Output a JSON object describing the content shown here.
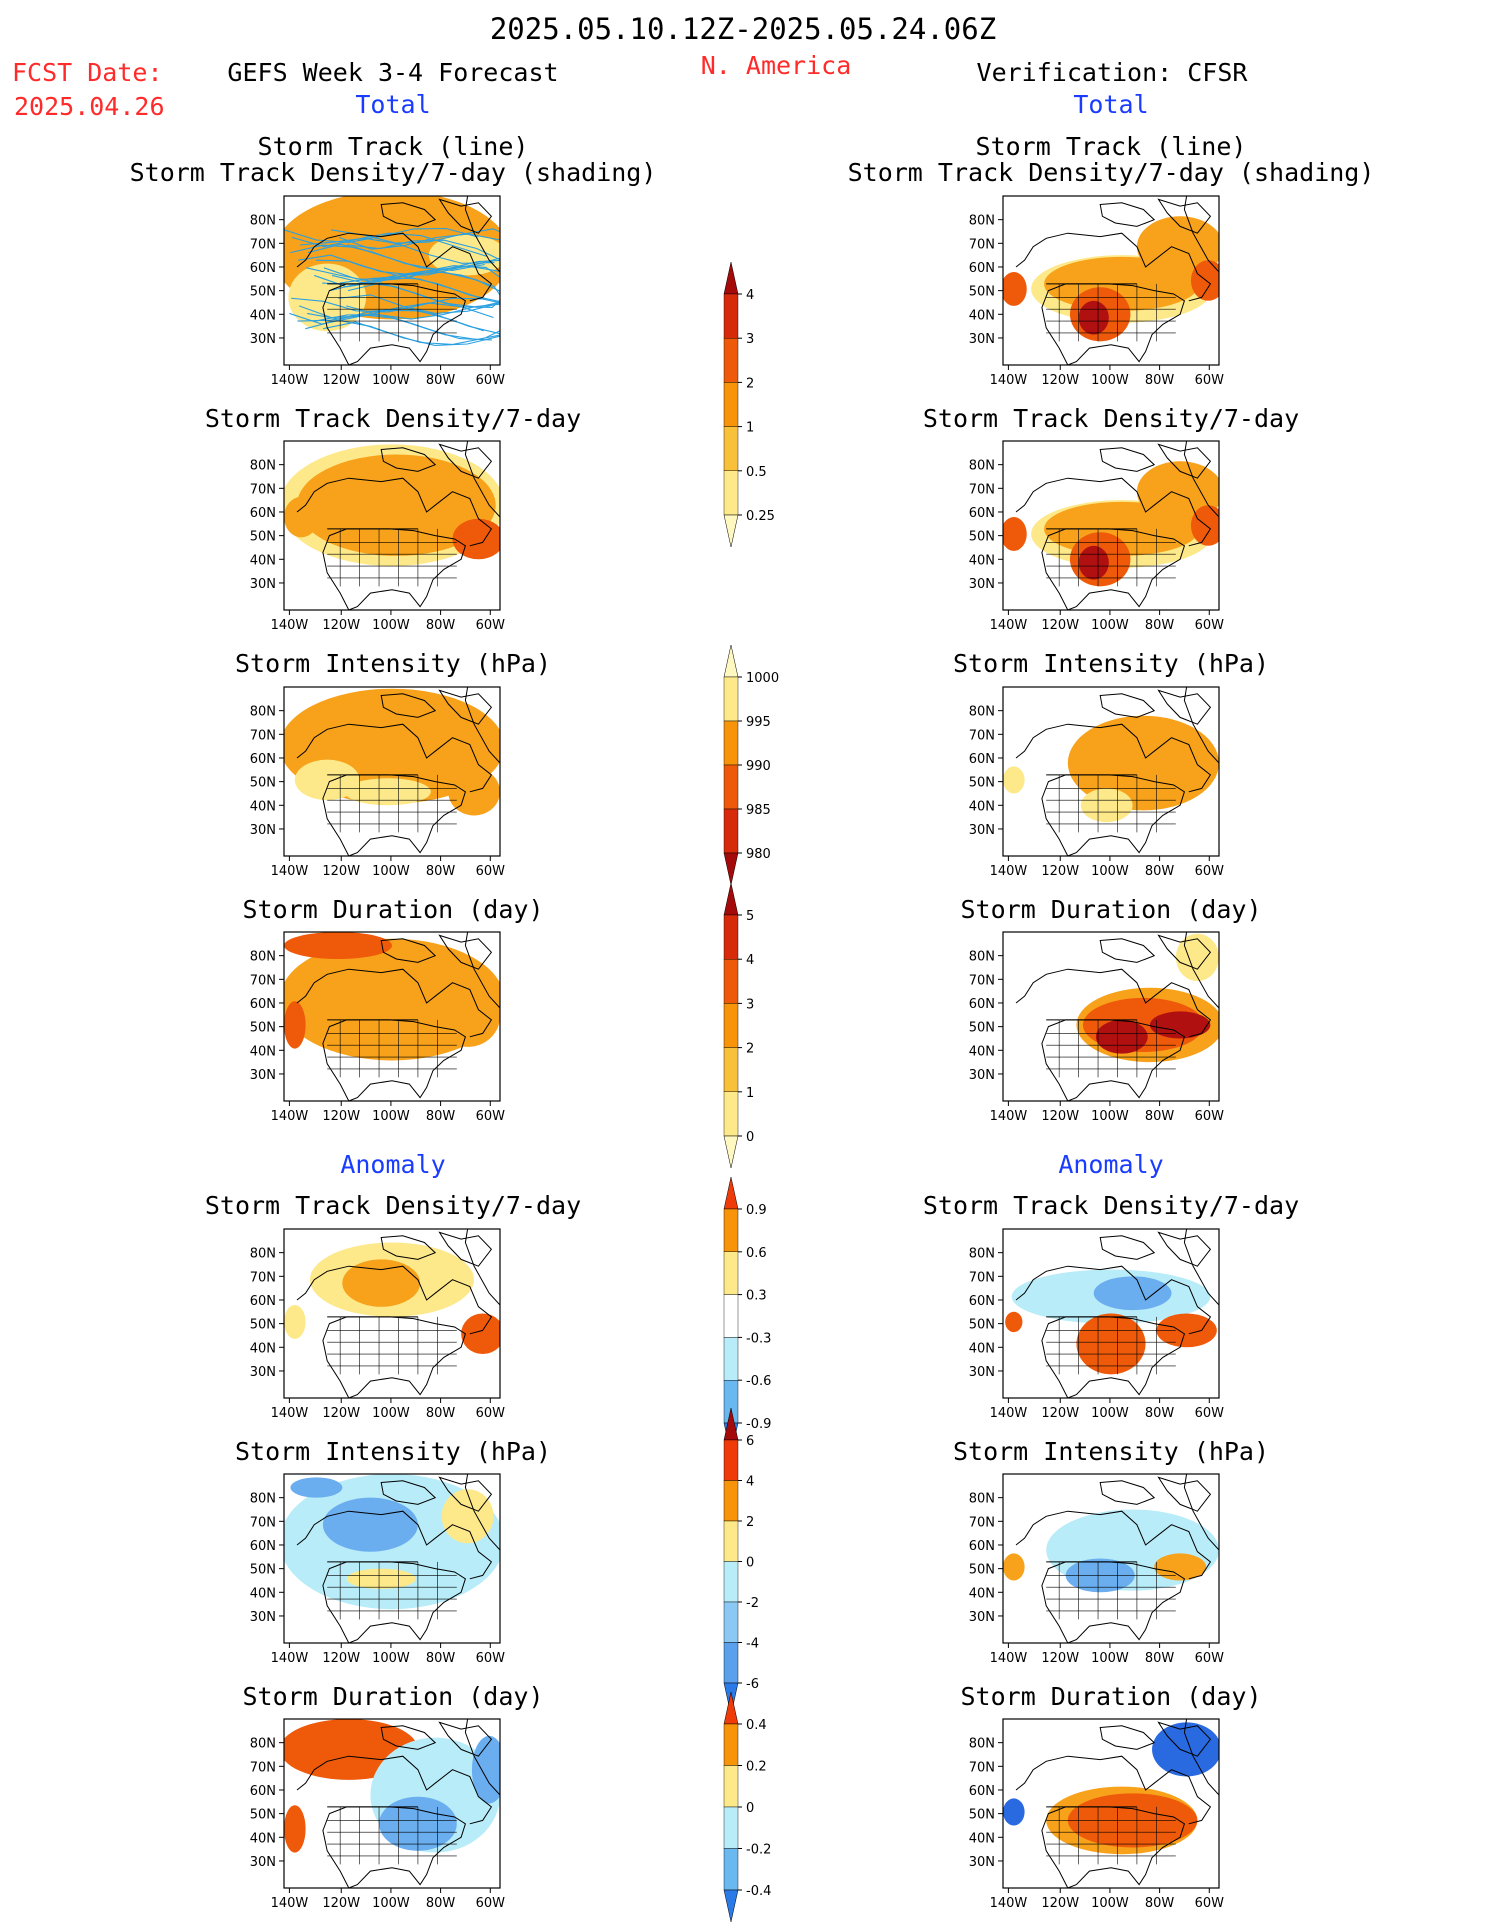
{
  "header": {
    "period": "2025.05.10.12Z-2025.05.24.06Z",
    "fcst_label": "FCST Date:",
    "fcst_date": "2025.04.26",
    "forecast_title": "GEFS Week 3-4 Forecast",
    "region": "N. America",
    "verification_title": "Verification: CFSR"
  },
  "sections": {
    "total": "Total",
    "anomaly": "Anomaly"
  },
  "titles": {
    "track_line": "Storm Track (line)",
    "track_density_shading": "Storm Track Density/7-day (shading)",
    "track_density": "Storm Track Density/7-day",
    "intensity": "Storm Intensity (hPa)",
    "duration": "Storm Duration (day)"
  },
  "axes": {
    "lat_labels": [
      "80N",
      "70N",
      "60N",
      "50N",
      "40N",
      "30N"
    ],
    "lon_labels": [
      "140W",
      "120W",
      "100W",
      "80W",
      "60W"
    ]
  },
  "colorbars": {
    "density_total": {
      "labels": [
        "4",
        "3",
        "2",
        "1",
        "0.5",
        "0.25"
      ],
      "colors": [
        "#a50a0a",
        "#d72a0a",
        "#ef5a0a",
        "#f7940a",
        "#f9c03a",
        "#fde98a",
        "#fff8c0"
      ]
    },
    "intensity_total": {
      "labels": [
        "1000",
        "995",
        "990",
        "985",
        "980"
      ],
      "colors": [
        "#fff8c0",
        "#fde98a",
        "#f7940a",
        "#ef5a0a",
        "#d72a0a",
        "#a50a0a"
      ]
    },
    "duration_total": {
      "labels": [
        "5",
        "4",
        "3",
        "2",
        "1",
        "0"
      ],
      "colors": [
        "#a50a0a",
        "#d72a0a",
        "#ef5a0a",
        "#f7940a",
        "#f9c03a",
        "#fde98a",
        "#fff8c0"
      ]
    },
    "density_anom": {
      "labels": [
        "0.9",
        "0.6",
        "0.3",
        "-0.3",
        "-0.6",
        "-0.9"
      ],
      "colors": [
        "#ef3a0a",
        "#f7940a",
        "#fde98a",
        "#ffffff",
        "#b8ecf8",
        "#6ab8f0",
        "#2a7ae8"
      ]
    },
    "intensity_anom": {
      "labels": [
        "6",
        "4",
        "2",
        "0",
        "-2",
        "-4",
        "-6"
      ],
      "colors": [
        "#a50a0a",
        "#ef3a0a",
        "#f7940a",
        "#fde98a",
        "#b8ecf8",
        "#8cc8f4",
        "#5aa0ec",
        "#2a7ae8"
      ]
    },
    "duration_anom": {
      "labels": [
        "0.4",
        "0.2",
        "0",
        "-0.2",
        "-0.4"
      ],
      "colors": [
        "#ef3a0a",
        "#f7940a",
        "#fde98a",
        "#b8ecf8",
        "#6ab8f0",
        "#2a7ae8"
      ]
    }
  },
  "palette": {
    "light_yellow": "#fde98a",
    "orange": "#f7a21a",
    "red_orange": "#ef5a0a",
    "dark_red": "#b01010",
    "light_blue": "#b8ecf8",
    "mid_blue": "#6aaef0",
    "dark_blue": "#2a6ae0",
    "track_line": "#2aa0e0"
  },
  "maps": [
    {
      "name": "map-fcst-track-lines",
      "style": "tracks",
      "title_key": "track_density_shading"
    },
    {
      "name": "map-obs-track-lines",
      "style": "obs-density",
      "title_key": "track_density_shading"
    },
    {
      "name": "map-fcst-density",
      "style": "fcst-density"
    },
    {
      "name": "map-obs-density",
      "style": "obs-density"
    },
    {
      "name": "map-fcst-intensity",
      "style": "fcst-intensity"
    },
    {
      "name": "map-obs-intensity",
      "style": "obs-intensity"
    },
    {
      "name": "map-fcst-duration",
      "style": "fcst-duration"
    },
    {
      "name": "map-obs-duration",
      "style": "obs-duration"
    },
    {
      "name": "map-fcst-density-anom",
      "style": "fcst-density-anom"
    },
    {
      "name": "map-obs-density-anom",
      "style": "obs-density-anom"
    },
    {
      "name": "map-fcst-intensity-anom",
      "style": "fcst-intensity-anom"
    },
    {
      "name": "map-obs-intensity-anom",
      "style": "obs-intensity-anom"
    },
    {
      "name": "map-fcst-duration-anom",
      "style": "fcst-duration-anom"
    },
    {
      "name": "map-obs-duration-anom",
      "style": "obs-duration-anom"
    }
  ]
}
